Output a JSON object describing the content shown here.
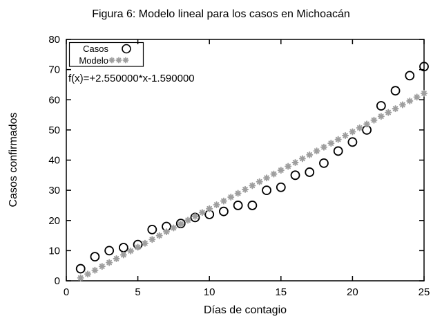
{
  "figure": {
    "title": "Figura 6: Modelo lineal para los casos en Michoacán"
  },
  "chart_data": {
    "type": "scatter",
    "title": "Figura 6: Modelo lineal para los casos en Michoacán",
    "xlabel": "Días de contagio",
    "ylabel": "Casos confirmados",
    "xlim": [
      0,
      25
    ],
    "ylim": [
      0,
      80
    ],
    "x_ticks": [
      0,
      5,
      10,
      15,
      20,
      25
    ],
    "y_ticks": [
      0,
      10,
      20,
      30,
      40,
      50,
      60,
      70,
      80
    ],
    "grid": false,
    "legend_position": "top-left-inside",
    "annotation": "f(x)=+2.550000*x-1.590000",
    "series": [
      {
        "name": "Casos",
        "marker": "open-circle",
        "color": "#000000",
        "x": [
          1,
          2,
          3,
          4,
          5,
          6,
          7,
          8,
          9,
          10,
          11,
          12,
          13,
          14,
          15,
          16,
          17,
          18,
          19,
          20,
          21,
          22,
          23,
          24,
          25
        ],
        "y": [
          4,
          8,
          10,
          11,
          12,
          17,
          18,
          19,
          21,
          22,
          23,
          25,
          25,
          30,
          31,
          35,
          36,
          39,
          43,
          46,
          50,
          58,
          63,
          68,
          71
        ]
      },
      {
        "name": "Modelo",
        "marker": "asterisk",
        "color": "#9e9e9e",
        "slope": 2.55,
        "intercept": -1.59,
        "sample_start": 1,
        "sample_step": 0.5,
        "sample_end": 25
      }
    ]
  },
  "colors": {
    "background": "#ffffff",
    "frame": "#000000",
    "text": "#000000",
    "model_gray": "#9e9e9e"
  }
}
